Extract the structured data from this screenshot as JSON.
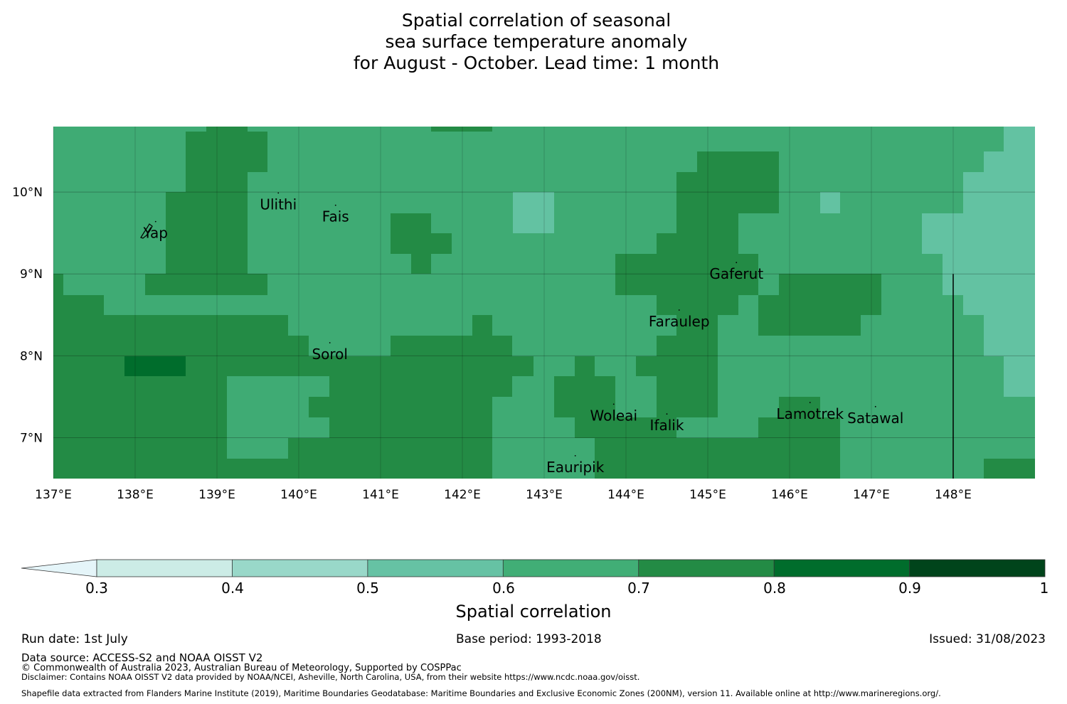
{
  "title": {
    "line1": "Spatial correlation of seasonal",
    "line2": "sea surface temperature anomaly",
    "line3": "for August - October. Lead time: 1 month"
  },
  "map": {
    "lat_labels": [
      "10°N",
      "9°N",
      "8°N",
      "7°N"
    ],
    "lon_labels": [
      "137°E",
      "138°E",
      "139°E",
      "140°E",
      "141°E",
      "142°E",
      "143°E",
      "144°E",
      "145°E",
      "146°E",
      "147°E",
      "148°E"
    ],
    "extent": {
      "lon": [
        137.0,
        149.0
      ],
      "lat": [
        6.5,
        10.8
      ]
    },
    "places": [
      {
        "name": "Yap",
        "lon": 138.25,
        "lat": 9.5
      },
      {
        "name": "Ulithi",
        "lon": 139.75,
        "lat": 9.85
      },
      {
        "name": "Fais",
        "lon": 140.45,
        "lat": 9.7
      },
      {
        "name": "Gaferut",
        "lon": 145.35,
        "lat": 9.0
      },
      {
        "name": "Faraulep",
        "lon": 144.65,
        "lat": 8.42
      },
      {
        "name": "Sorol",
        "lon": 140.38,
        "lat": 8.02
      },
      {
        "name": "Woleai",
        "lon": 143.85,
        "lat": 7.27
      },
      {
        "name": "Ifalik",
        "lon": 144.5,
        "lat": 7.15
      },
      {
        "name": "Lamotrek",
        "lon": 146.25,
        "lat": 7.29
      },
      {
        "name": "Satawal",
        "lon": 147.05,
        "lat": 7.24
      },
      {
        "name": "Eauripik",
        "lon": 143.38,
        "lat": 6.64
      }
    ],
    "boundary_lon": 148.0,
    "colors": {
      "c05": "#63c2a2",
      "c06": "#3fab74",
      "c07": "#238b45",
      "c08": "#006d2c"
    }
  },
  "colorbar": {
    "ticks": [
      "0.3",
      "0.4",
      "0.5",
      "0.6",
      "0.7",
      "0.8",
      "0.9",
      "1"
    ],
    "colors": [
      "#ccece6",
      "#99d8c9",
      "#66c2a4",
      "#41ae76",
      "#238b45",
      "#006d2c",
      "#00441b"
    ],
    "extend_color": "#e5f5f9",
    "label": "Spatial correlation"
  },
  "footer": {
    "run_date": "Run date: 1st July",
    "base_period": "Base period: 1993-2018",
    "issued": "Issued: 31/08/2023",
    "data_source": "Data source: ACCESS-S2 and NOAA OISST V2",
    "copyright": "© Commonwealth of Australia 2023, Australian Bureau of Meteorology, Supported by COSPPac",
    "disclaimer": "Disclaimer: Contains NOAA OISST V2 data provided by NOAA/NCEI, Asheville, North Carolina, USA, from their website https://www.ncdc.noaa.gov/oisst.",
    "shapefile": "Shapefile data extracted from Flanders Marine Institute (2019), Maritime Boundaries Geodatabase: Maritime Boundaries and Exclusive Economic Zones (200NM), version 11. Available online at http://www.marineregions.org/."
  }
}
